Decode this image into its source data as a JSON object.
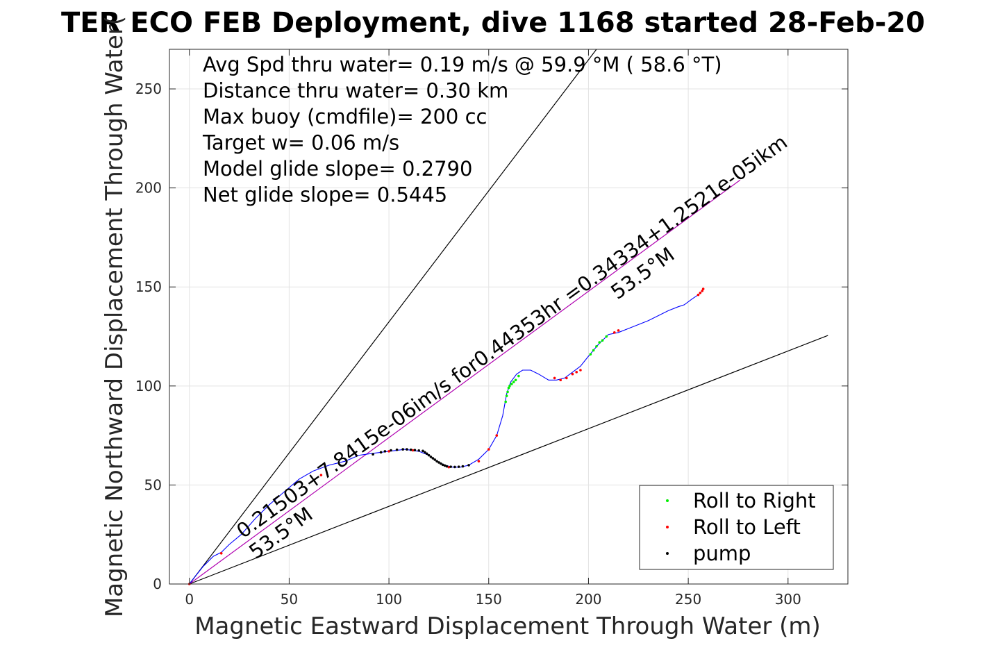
{
  "chart_data": {
    "type": "scatter",
    "title": "TER ECO FEB Deployment, dive 1168 started 28-Feb-20",
    "xlabel": "Magnetic Eastward Displacement Through Water (m)",
    "ylabel": "Magnetic Northward Displacement Through Water(",
    "xlim": [
      -10,
      330
    ],
    "ylim": [
      0,
      270
    ],
    "x_ticks": [
      0,
      50,
      100,
      150,
      200,
      250,
      300
    ],
    "y_ticks": [
      0,
      50,
      100,
      150,
      200,
      250
    ],
    "grid": true,
    "legend_position": "bottom-right",
    "annotations": [
      "Avg Spd thru water=  0.19 m/s @  59.9 °M ( 58.6 °T)",
      "Distance thru water=  0.30 km",
      "Max buoy (cmdfile)= 200 cc",
      "Target w= 0.06 m/s",
      "Model glide slope= 0.2790",
      "Net glide slope= 0.5445"
    ],
    "line_labels": {
      "fit": "0.21503+7.8415e-06im/s for0.44353hr =0.34334+1.2521e-05ikm",
      "upper_heading": "53.5°M",
      "lower_heading": "53.5°M"
    },
    "reference_lines": [
      {
        "name": "upper-heading-line",
        "color": "#000000",
        "x": [
          0,
          204
        ],
        "y": [
          0,
          270
        ]
      },
      {
        "name": "lower-heading-line",
        "color": "#000000",
        "x": [
          0,
          320
        ],
        "y": [
          0,
          125.5
        ]
      },
      {
        "name": "fit-line",
        "color": "#b000b0",
        "x": [
          0,
          276
        ],
        "y": [
          0,
          204
        ]
      }
    ],
    "track": {
      "color": "#0000ff",
      "x": [
        0,
        3,
        7,
        12,
        16,
        20,
        26,
        33,
        40,
        48,
        55,
        62,
        70,
        78,
        85,
        92,
        100,
        108,
        115,
        120,
        124,
        128,
        132,
        136,
        140,
        145,
        150,
        154,
        157,
        159,
        161,
        164,
        167,
        171,
        175,
        180,
        184,
        188,
        192,
        196,
        200,
        205,
        210,
        215,
        220,
        230,
        240,
        245,
        248,
        252,
        255,
        257
      ],
      "y": [
        0,
        4,
        9,
        14,
        16,
        20,
        25,
        33,
        40,
        47,
        53,
        57,
        60,
        62,
        65,
        66,
        67,
        68,
        67,
        65,
        62,
        60,
        59,
        59,
        60,
        63,
        68,
        75,
        85,
        96,
        102,
        106,
        108,
        108,
        106,
        103,
        103,
        104,
        107,
        110,
        115,
        121,
        126,
        127,
        129,
        133,
        138,
        140,
        141,
        144,
        146,
        148
      ]
    },
    "series": [
      {
        "name": "Roll to Right",
        "color": "#00ee00",
        "x": [
          158.5,
          159.0,
          159.5,
          160.0,
          160.5,
          161.5,
          162.5,
          163.5,
          165.0,
          201.0,
          202.5,
          204.0,
          205.5,
          207.0,
          209.0
        ],
        "y": [
          92,
          95,
          97,
          99,
          100,
          101,
          102,
          103,
          105,
          116,
          118,
          120,
          122,
          123,
          125
        ]
      },
      {
        "name": "Roll to Left",
        "color": "#ff0000",
        "x": [
          0,
          16,
          66,
          100,
          112,
          130,
          145,
          150,
          154,
          183,
          186,
          189,
          192,
          194,
          196,
          213,
          215,
          255,
          256,
          257,
          257.5
        ],
        "y": [
          0,
          15.5,
          55,
          67,
          67.5,
          59,
          62,
          68,
          75,
          104,
          103,
          104,
          106,
          107,
          108,
          127,
          128,
          146,
          147,
          148,
          149
        ]
      },
      {
        "name": "pump",
        "color": "#000000",
        "x": [
          92,
          96,
          98,
          101,
          104,
          107,
          109,
          111,
          113,
          115,
          117,
          118,
          119,
          120,
          121,
          122,
          123,
          124,
          125,
          126,
          127,
          128,
          129,
          131,
          133,
          135,
          137,
          140
        ],
        "y": [
          65.5,
          66.5,
          67,
          67.5,
          67.8,
          68,
          68,
          67.8,
          67.6,
          67.4,
          67.2,
          66.5,
          65.8,
          65,
          64.2,
          63.5,
          62.8,
          62,
          61.4,
          60.8,
          60.2,
          59.8,
          59.4,
          59.2,
          59.1,
          59.2,
          59.4,
          60
        ]
      }
    ]
  }
}
